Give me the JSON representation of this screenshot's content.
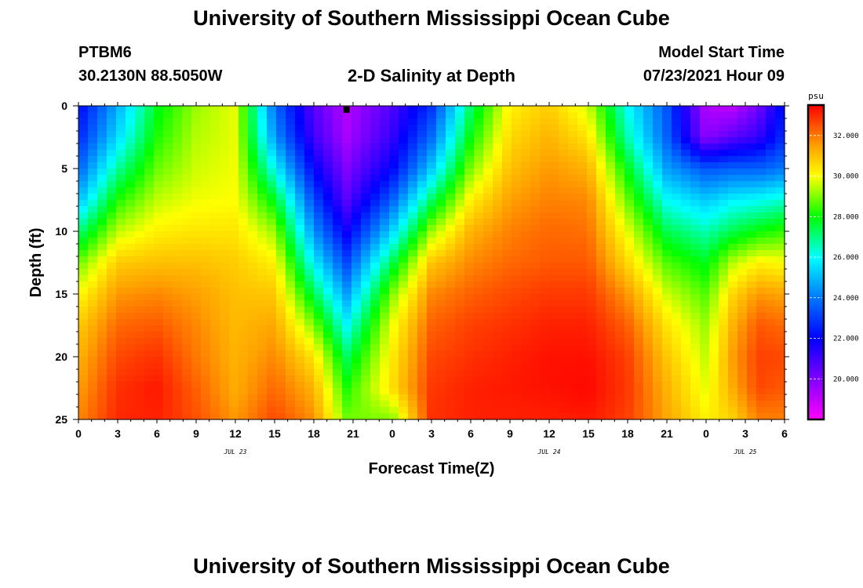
{
  "header": {
    "title": "University of Southern Mississippi Ocean Cube",
    "station_id": "PTBM6",
    "station_coords": "30.2130N  88.5050W",
    "plot_title": "2-D Salinity at Depth",
    "model_label": "Model Start Time",
    "model_time": "07/23/2021 Hour 09"
  },
  "footer": {
    "title": "University of Southern Mississippi Ocean Cube"
  },
  "chart_data": {
    "type": "heatmap",
    "title": "2-D Salinity at Depth",
    "xlabel": "Forecast Time(Z)",
    "ylabel": "Depth (ft)",
    "x_range_hours": [
      0,
      54
    ],
    "x_ticks": [
      "0",
      "3",
      "6",
      "9",
      "12",
      "15",
      "18",
      "21",
      "0",
      "3",
      "6",
      "9",
      "12",
      "15",
      "18",
      "21",
      "0",
      "3",
      "6"
    ],
    "date_labels": [
      {
        "label": "JUL 23",
        "hour": 12
      },
      {
        "label": "JUL 24",
        "hour": 36
      },
      {
        "label": "JUL 25",
        "hour": 51
      }
    ],
    "y_range_ft": [
      0,
      25
    ],
    "y_ticks": [
      "0",
      "5",
      "10",
      "15",
      "20",
      "25"
    ],
    "colorbar": {
      "unit": "psu",
      "range": [
        18,
        33.5
      ],
      "tick_labels": [
        "20.000",
        "22.000",
        "24.000",
        "26.000",
        "28.000",
        "30.000",
        "32.000"
      ],
      "tick_values": [
        20,
        22,
        24,
        26,
        28,
        30,
        32
      ]
    },
    "marker": {
      "hour": 20.5,
      "depth_ft": 0.3
    },
    "profile_hours": [
      0,
      3,
      6,
      9,
      12,
      15,
      18,
      20.5,
      24,
      27,
      30,
      33,
      36,
      39,
      42,
      45,
      48,
      50,
      52,
      54
    ],
    "profile_depths_ft": [
      0,
      2.5,
      5,
      7.5,
      10,
      12.5,
      15,
      17.5,
      20,
      22.5,
      25
    ],
    "salinity_psu": [
      [
        22.0,
        22.6,
        23.6,
        25.0,
        27.0,
        28.8,
        30.0,
        30.8,
        31.2,
        31.5,
        31.8
      ],
      [
        24.8,
        25.5,
        26.8,
        28.2,
        29.5,
        30.8,
        31.6,
        32.2,
        32.6,
        32.9,
        33.0
      ],
      [
        27.8,
        28.2,
        28.8,
        29.5,
        30.2,
        31.0,
        31.8,
        32.4,
        32.9,
        33.2,
        33.1
      ],
      [
        29.2,
        29.4,
        29.6,
        29.9,
        30.4,
        31.0,
        31.5,
        31.8,
        32.0,
        32.3,
        32.5
      ],
      [
        29.8,
        29.8,
        29.9,
        30.0,
        30.4,
        30.8,
        31.0,
        31.1,
        31.2,
        31.3,
        31.6
      ],
      [
        23.8,
        24.5,
        26.0,
        27.8,
        29.2,
        30.2,
        30.9,
        31.4,
        31.8,
        32.2,
        32.6
      ],
      [
        20.6,
        21.0,
        22.0,
        23.2,
        24.4,
        25.8,
        27.4,
        29.0,
        30.4,
        31.2,
        31.7
      ],
      [
        19.2,
        19.4,
        20.0,
        20.6,
        21.8,
        23.2,
        24.6,
        26.0,
        27.3,
        28.2,
        28.9
      ],
      [
        20.8,
        21.2,
        22.0,
        23.6,
        25.4,
        27.4,
        29.0,
        29.9,
        30.3,
        30.5,
        29.0
      ],
      [
        22.8,
        23.8,
        25.2,
        27.2,
        29.2,
        30.9,
        31.8,
        32.3,
        32.6,
        32.8,
        32.9
      ],
      [
        27.2,
        28.0,
        29.0,
        30.2,
        31.2,
        31.8,
        32.3,
        32.7,
        32.9,
        33.1,
        33.1
      ],
      [
        30.2,
        30.6,
        31.0,
        31.5,
        31.9,
        32.2,
        32.6,
        32.9,
        33.1,
        33.2,
        33.1
      ],
      [
        30.8,
        31.2,
        31.6,
        31.9,
        32.2,
        32.4,
        32.8,
        33.1,
        33.3,
        33.3,
        33.1
      ],
      [
        29.6,
        30.4,
        31.2,
        31.8,
        32.1,
        32.4,
        32.8,
        33.1,
        33.3,
        33.4,
        33.2
      ],
      [
        26.0,
        26.6,
        27.8,
        28.8,
        29.8,
        30.6,
        31.6,
        32.3,
        32.7,
        32.8,
        32.7
      ],
      [
        23.4,
        23.6,
        24.6,
        26.0,
        27.4,
        28.6,
        29.6,
        30.4,
        30.9,
        31.2,
        31.4
      ],
      [
        19.2,
        19.8,
        23.4,
        25.2,
        26.6,
        27.8,
        28.6,
        29.2,
        29.5,
        29.8,
        30.2
      ],
      [
        19.0,
        20.6,
        23.6,
        25.8,
        27.4,
        29.4,
        30.6,
        31.2,
        31.5,
        31.3,
        30.7
      ],
      [
        20.2,
        21.2,
        23.6,
        26.0,
        28.0,
        30.2,
        31.6,
        32.4,
        32.7,
        32.6,
        31.9
      ],
      [
        22.4,
        22.8,
        24.0,
        26.4,
        28.4,
        30.0,
        31.4,
        32.2,
        32.6,
        32.4,
        31.9
      ]
    ]
  }
}
